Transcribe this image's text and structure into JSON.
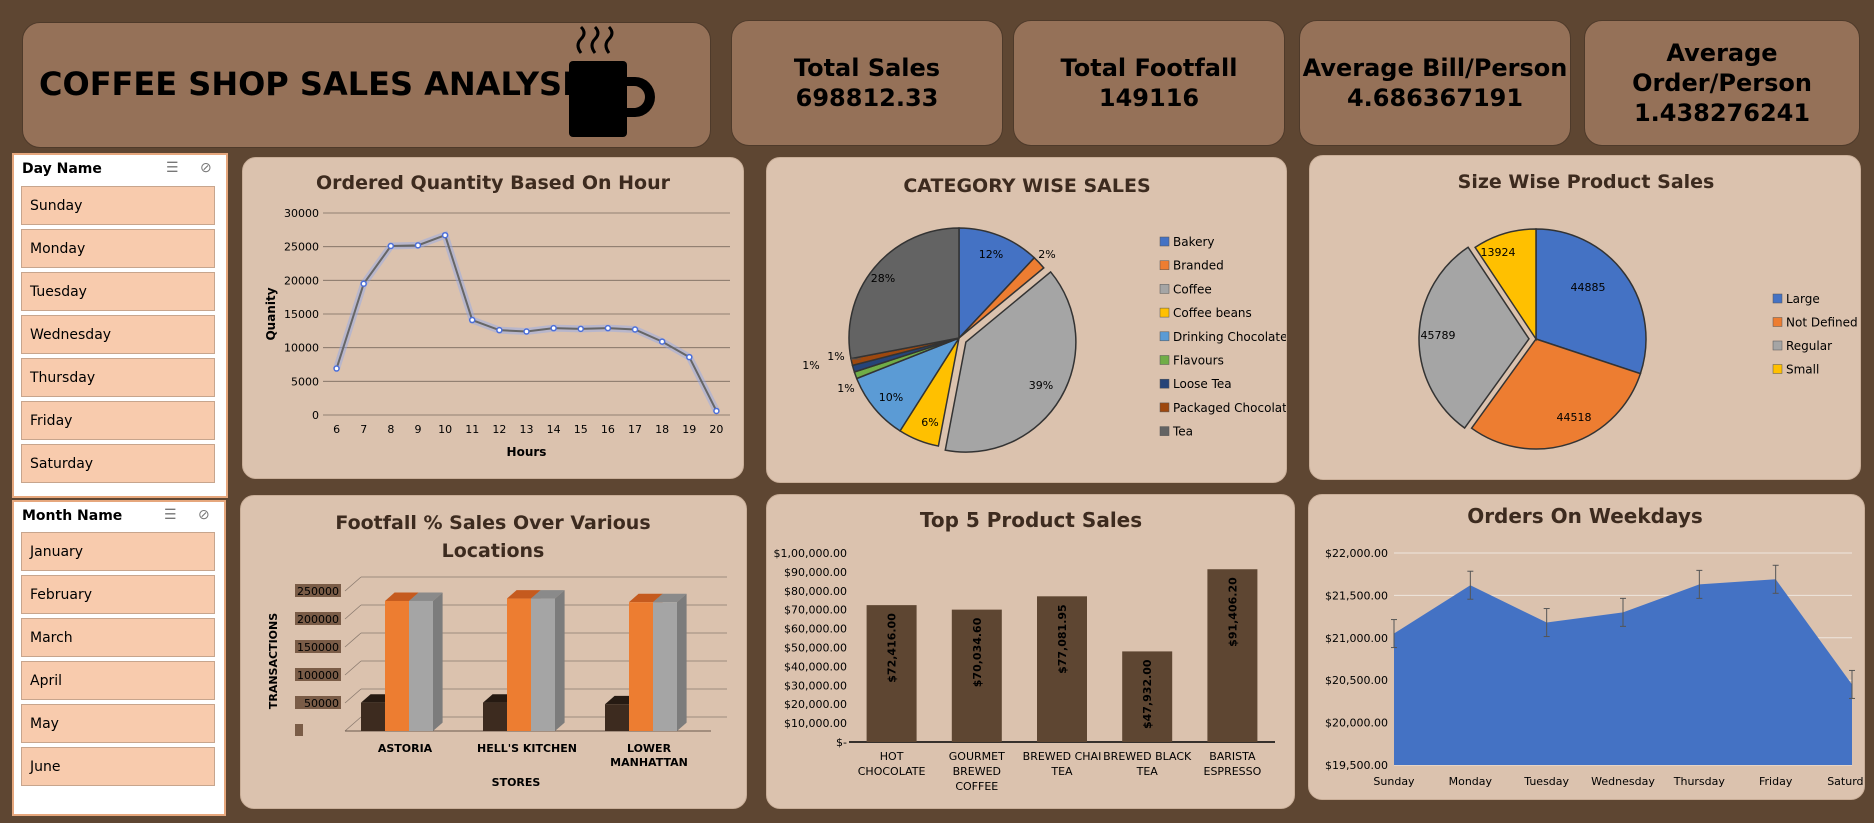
{
  "header": {
    "title": "COFFEE SHOP SALES ANALYSIS",
    "icon": "coffee-mug-icon"
  },
  "kpis": [
    {
      "label": "Total Sales",
      "value": "698812.33"
    },
    {
      "label": "Total Footfall",
      "value": "149116"
    },
    {
      "label": "Average Bill/Person",
      "value": "4.686367191"
    },
    {
      "label": "Average Order/Person",
      "value": "1.438276241"
    }
  ],
  "slicers": {
    "day": {
      "title": "Day Name",
      "items": [
        "Sunday",
        "Monday",
        "Tuesday",
        "Wednesday",
        "Thursday",
        "Friday",
        "Saturday"
      ]
    },
    "month": {
      "title": "Month Name",
      "items": [
        "January",
        "February",
        "March",
        "April",
        "May",
        "June"
      ]
    }
  },
  "chart_data": [
    {
      "type": "line",
      "title": "Ordered Quantity Based On Hour",
      "xlabel": "Hours",
      "ylabel": "Quanity",
      "x": [
        6,
        7,
        8,
        9,
        10,
        11,
        12,
        13,
        14,
        15,
        16,
        17,
        18,
        19,
        20
      ],
      "values": [
        6900,
        19500,
        25100,
        25200,
        26700,
        14100,
        12600,
        12400,
        12900,
        12800,
        12900,
        12700,
        10900,
        8600,
        600
      ],
      "ylim": [
        0,
        30000
      ],
      "yticks": [
        "0",
        "5000",
        "10000",
        "15000",
        "20000",
        "25000",
        "30000"
      ],
      "color": "#4c6fd9",
      "grid": true
    },
    {
      "type": "pie",
      "title": "CATEGORY WISE SALES",
      "categories": [
        "Bakery",
        "Branded",
        "Coffee",
        "Coffee beans",
        "Drinking Chocolate",
        "Flavours",
        "Loose Tea",
        "Packaged Chocolate",
        "Tea"
      ],
      "values": [
        12,
        2,
        39,
        6,
        10,
        1,
        1,
        1,
        28
      ],
      "labels": [
        "12%",
        "2%",
        "39%",
        "6%",
        "10%",
        "1%",
        "1%",
        "1%",
        "28%"
      ],
      "colors": [
        "#4472c4",
        "#ed7d31",
        "#a5a5a5",
        "#ffc000",
        "#5b9bd5",
        "#70ad47",
        "#264478",
        "#9e480e",
        "#636363"
      ],
      "legend": "right"
    },
    {
      "type": "pie",
      "title": "Size Wise Product Sales",
      "categories": [
        "Large",
        "Not Defined",
        "Regular",
        "Small"
      ],
      "values": [
        44885,
        44518,
        45789,
        13924
      ],
      "labels": [
        "44885",
        "44518",
        "45789",
        "13924"
      ],
      "colors": [
        "#4472c4",
        "#ed7d31",
        "#a5a5a5",
        "#ffc000"
      ],
      "legend": "right"
    },
    {
      "type": "bar",
      "title": "Footfall % Sales Over Various Locations",
      "xlabel": "STORES",
      "ylabel": "TRANSACTIONS",
      "categories": [
        "ASTORIA",
        "HELL'S KITCHEN",
        "LOWER MANHATTAN"
      ],
      "series": [
        {
          "values": [
            50599,
            50735,
            47782
          ],
          "color": "#3d2b1f"
        },
        {
          "values": [
            232243,
            236511,
            230057
          ],
          "color": "#ed7d31"
        },
        {
          "values": [
            232243,
            236511,
            230057
          ],
          "color": "#a5a5a5"
        }
      ],
      "ylim": [
        0,
        250000
      ],
      "yticks": [
        "",
        "50000",
        "100000",
        "150000",
        "200000",
        "250000"
      ]
    },
    {
      "type": "bar",
      "title": "Top 5 Product Sales",
      "categories": [
        "HOT CHOCOLATE",
        "GOURMET BREWED COFFEE",
        "BREWED CHAI TEA",
        "BREWED BLACK TEA",
        "BARISTA ESPRESSO"
      ],
      "values": [
        72416,
        70034.6,
        77081.95,
        47932,
        91406.2
      ],
      "labels": [
        "$72,416.00",
        "$70,034.60",
        "$77,081.95",
        "$47,932.00",
        "$91,406.20"
      ],
      "ylim": [
        0,
        100000
      ],
      "yticks": [
        "$-",
        "$10,000.00",
        "$20,000.00",
        "$30,000.00",
        "$40,000.00",
        "$50,000.00",
        "$60,000.00",
        "$70,000.00",
        "$80,000.00",
        "$90,000.00",
        "$1,00,000.00"
      ],
      "color": "#5e4632"
    },
    {
      "type": "area",
      "title": "Orders On Weekdays",
      "categories": [
        "Sunday",
        "Monday",
        "Tuesday",
        "Wednesday",
        "Thursday",
        "Friday",
        "Saturday"
      ],
      "values": [
        21050,
        21620,
        21180,
        21300,
        21630,
        21690,
        20450
      ],
      "ylim": [
        19500,
        22000
      ],
      "yticks": [
        "$19,500.00",
        "$20,000.00",
        "$20,500.00",
        "$21,000.00",
        "$21,500.00",
        "$22,000.00"
      ],
      "color": "#4472c4"
    }
  ]
}
